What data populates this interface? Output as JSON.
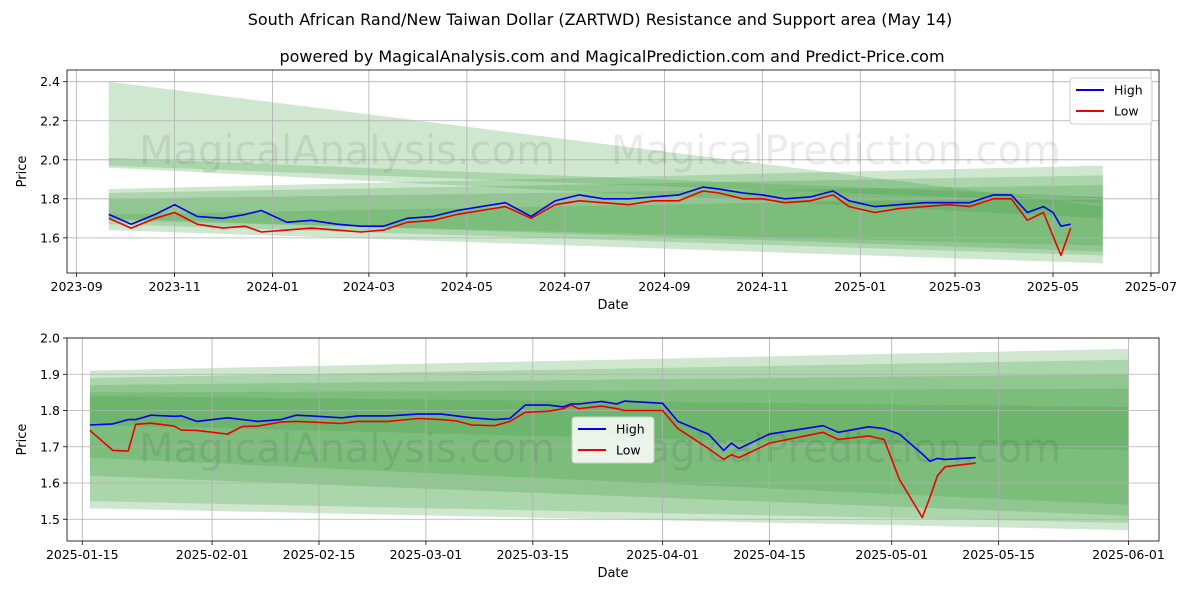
{
  "title": "South African Rand/New Taiwan Dollar (ZARTWD) Resistance and Support area (May 14)",
  "subtitle": "powered by MagicalAnalysis.com and MagicalPrediction.com and Predict-Price.com",
  "watermark": [
    "MagicalAnalysis.com",
    "MagicalPrediction.com"
  ],
  "colors": {
    "high": "#0000ee",
    "low": "#ee0000",
    "band": "#3f9f3f"
  },
  "chart_data": [
    {
      "type": "line",
      "xlabel": "Date",
      "ylabel": "Price",
      "xlim": [
        "2023-08-26",
        "2025-07-06"
      ],
      "ylim": [
        1.42,
        2.46
      ],
      "xticks": [
        "2023-09",
        "2023-11",
        "2024-01",
        "2024-03",
        "2024-05",
        "2024-07",
        "2024-09",
        "2024-11",
        "2025-01",
        "2025-03",
        "2025-05",
        "2025-07"
      ],
      "xtick_dates": [
        "2023-09-01",
        "2023-11-01",
        "2024-01-01",
        "2024-03-01",
        "2024-05-01",
        "2024-07-01",
        "2024-09-01",
        "2024-11-01",
        "2025-01-01",
        "2025-03-01",
        "2025-05-01",
        "2025-07-01"
      ],
      "yticks": [
        "1.6",
        "1.8",
        "2.0",
        "2.2",
        "2.4"
      ],
      "ytick_values": [
        1.6,
        1.8,
        2.0,
        2.2,
        2.4
      ],
      "grid": true,
      "legend": "top-right",
      "legend_entries": [
        "High",
        "Low"
      ],
      "bands": [
        {
          "start": "2023-09-21",
          "end": "2025-06-01",
          "upper": [
            2.4,
            1.76
          ],
          "lower": [
            1.96,
            1.7
          ]
        },
        {
          "start": "2023-09-21",
          "end": "2025-06-01",
          "upper": [
            2.01,
            1.81
          ],
          "lower": [
            1.97,
            1.78
          ]
        },
        {
          "start": "2023-09-21",
          "end": "2025-06-01",
          "upper": [
            1.85,
            1.97
          ],
          "lower": [
            1.64,
            1.47
          ]
        },
        {
          "start": "2023-09-21",
          "end": "2025-06-01",
          "upper": [
            1.83,
            1.92
          ],
          "lower": [
            1.67,
            1.51
          ]
        },
        {
          "start": "2023-09-21",
          "end": "2025-06-01",
          "upper": [
            1.8,
            1.87
          ],
          "lower": [
            1.7,
            1.53
          ]
        },
        {
          "start": "2023-09-21",
          "end": "2025-06-01",
          "upper": [
            1.72,
            1.81
          ],
          "lower": [
            1.69,
            1.56
          ]
        }
      ],
      "series": [
        {
          "name": "High",
          "x": [
            "2023-09-21",
            "2023-10-05",
            "2023-10-20",
            "2023-11-01",
            "2023-11-15",
            "2023-12-01",
            "2023-12-15",
            "2023-12-25",
            "2024-01-10",
            "2024-01-25",
            "2024-02-10",
            "2024-02-25",
            "2024-03-10",
            "2024-03-25",
            "2024-04-10",
            "2024-04-25",
            "2024-05-10",
            "2024-05-25",
            "2024-06-10",
            "2024-06-25",
            "2024-07-10",
            "2024-07-25",
            "2024-08-10",
            "2024-08-25",
            "2024-09-10",
            "2024-09-25",
            "2024-10-05",
            "2024-10-20",
            "2024-11-01",
            "2024-11-15",
            "2024-12-01",
            "2024-12-15",
            "2024-12-25",
            "2025-01-10",
            "2025-01-25",
            "2025-02-10",
            "2025-02-25",
            "2025-03-10",
            "2025-03-25",
            "2025-04-05",
            "2025-04-15",
            "2025-04-25",
            "2025-05-01",
            "2025-05-06",
            "2025-05-12"
          ],
          "y": [
            1.72,
            1.67,
            1.72,
            1.77,
            1.71,
            1.7,
            1.72,
            1.74,
            1.68,
            1.69,
            1.67,
            1.66,
            1.66,
            1.7,
            1.71,
            1.74,
            1.76,
            1.78,
            1.71,
            1.79,
            1.82,
            1.8,
            1.8,
            1.81,
            1.82,
            1.86,
            1.85,
            1.83,
            1.82,
            1.8,
            1.81,
            1.84,
            1.79,
            1.76,
            1.77,
            1.78,
            1.78,
            1.78,
            1.82,
            1.82,
            1.73,
            1.76,
            1.73,
            1.66,
            1.67
          ]
        },
        {
          "name": "Low",
          "x": [
            "2023-09-21",
            "2023-10-05",
            "2023-10-20",
            "2023-11-01",
            "2023-11-15",
            "2023-12-01",
            "2023-12-15",
            "2023-12-25",
            "2024-01-10",
            "2024-01-25",
            "2024-02-10",
            "2024-02-25",
            "2024-03-10",
            "2024-03-25",
            "2024-04-10",
            "2024-04-25",
            "2024-05-10",
            "2024-05-25",
            "2024-06-10",
            "2024-06-25",
            "2024-07-10",
            "2024-07-25",
            "2024-08-10",
            "2024-08-25",
            "2024-09-10",
            "2024-09-25",
            "2024-10-05",
            "2024-10-20",
            "2024-11-01",
            "2024-11-15",
            "2024-12-01",
            "2024-12-15",
            "2024-12-25",
            "2025-01-10",
            "2025-01-25",
            "2025-02-10",
            "2025-02-25",
            "2025-03-10",
            "2025-03-25",
            "2025-04-05",
            "2025-04-15",
            "2025-04-25",
            "2025-05-01",
            "2025-05-06",
            "2025-05-12"
          ],
          "y": [
            1.7,
            1.65,
            1.7,
            1.73,
            1.67,
            1.65,
            1.66,
            1.63,
            1.64,
            1.65,
            1.64,
            1.63,
            1.64,
            1.68,
            1.69,
            1.72,
            1.74,
            1.76,
            1.7,
            1.77,
            1.79,
            1.78,
            1.77,
            1.79,
            1.79,
            1.84,
            1.83,
            1.8,
            1.8,
            1.78,
            1.79,
            1.82,
            1.76,
            1.73,
            1.75,
            1.76,
            1.77,
            1.76,
            1.8,
            1.8,
            1.69,
            1.73,
            1.61,
            1.51,
            1.65
          ]
        }
      ]
    },
    {
      "type": "line",
      "xlabel": "Date",
      "ylabel": "Price",
      "xlim": [
        "2025-01-13",
        "2025-06-05"
      ],
      "ylim": [
        1.44,
        2.0
      ],
      "xticks": [
        "2025-01-15",
        "2025-02-01",
        "2025-02-15",
        "2025-03-01",
        "2025-03-15",
        "2025-04-01",
        "2025-04-15",
        "2025-05-01",
        "2025-05-15",
        "2025-06-01"
      ],
      "xtick_dates": [
        "2025-01-15",
        "2025-02-01",
        "2025-02-15",
        "2025-03-01",
        "2025-03-15",
        "2025-04-01",
        "2025-04-15",
        "2025-05-01",
        "2025-05-15",
        "2025-06-01"
      ],
      "yticks": [
        "1.5",
        "1.6",
        "1.7",
        "1.8",
        "1.9",
        "2.0"
      ],
      "ytick_values": [
        1.5,
        1.6,
        1.7,
        1.8,
        1.9,
        2.0
      ],
      "grid": true,
      "legend": "center",
      "legend_entries": [
        "High",
        "Low"
      ],
      "bands": [
        {
          "start": "2025-01-16",
          "end": "2025-06-01",
          "upper": [
            1.91,
            1.97
          ],
          "lower": [
            1.53,
            1.47
          ]
        },
        {
          "start": "2025-01-16",
          "end": "2025-06-01",
          "upper": [
            1.89,
            1.94
          ],
          "lower": [
            1.55,
            1.49
          ]
        },
        {
          "start": "2025-01-16",
          "end": "2025-06-01",
          "upper": [
            1.87,
            1.9
          ],
          "lower": [
            1.62,
            1.51
          ]
        },
        {
          "start": "2025-01-16",
          "end": "2025-06-01",
          "upper": [
            1.85,
            1.86
          ],
          "lower": [
            1.67,
            1.54
          ]
        },
        {
          "start": "2025-01-16",
          "end": "2025-06-01",
          "upper": [
            1.84,
            1.81
          ],
          "lower": [
            1.76,
            1.69
          ]
        }
      ],
      "series": [
        {
          "name": "High",
          "x": [
            "2025-01-16",
            "2025-01-19",
            "2025-01-21",
            "2025-01-22",
            "2025-01-24",
            "2025-01-27",
            "2025-01-28",
            "2025-01-30",
            "2025-02-03",
            "2025-02-05",
            "2025-02-07",
            "2025-02-10",
            "2025-02-12",
            "2025-02-14",
            "2025-02-18",
            "2025-02-20",
            "2025-02-24",
            "2025-02-28",
            "2025-03-03",
            "2025-03-05",
            "2025-03-07",
            "2025-03-10",
            "2025-03-12",
            "2025-03-14",
            "2025-03-17",
            "2025-03-19",
            "2025-03-20",
            "2025-03-21",
            "2025-03-24",
            "2025-03-26",
            "2025-03-27",
            "2025-04-01",
            "2025-04-03",
            "2025-04-07",
            "2025-04-09",
            "2025-04-10",
            "2025-04-11",
            "2025-04-14",
            "2025-04-15",
            "2025-04-22",
            "2025-04-24",
            "2025-04-28",
            "2025-04-30",
            "2025-05-02",
            "2025-05-05",
            "2025-05-06",
            "2025-05-07",
            "2025-05-08",
            "2025-05-12"
          ],
          "y": [
            1.76,
            1.763,
            1.775,
            1.775,
            1.787,
            1.784,
            1.785,
            1.77,
            1.78,
            1.775,
            1.77,
            1.775,
            1.787,
            1.785,
            1.78,
            1.785,
            1.785,
            1.79,
            1.79,
            1.785,
            1.78,
            1.775,
            1.778,
            1.815,
            1.815,
            1.81,
            1.818,
            1.818,
            1.825,
            1.818,
            1.826,
            1.82,
            1.77,
            1.735,
            1.69,
            1.71,
            1.695,
            1.725,
            1.735,
            1.758,
            1.74,
            1.755,
            1.75,
            1.735,
            1.68,
            1.66,
            1.668,
            1.665,
            1.67
          ]
        },
        {
          "name": "Low",
          "x": [
            "2025-01-16",
            "2025-01-19",
            "2025-01-21",
            "2025-01-22",
            "2025-01-24",
            "2025-01-27",
            "2025-01-28",
            "2025-01-30",
            "2025-02-03",
            "2025-02-05",
            "2025-02-07",
            "2025-02-10",
            "2025-02-12",
            "2025-02-14",
            "2025-02-18",
            "2025-02-20",
            "2025-02-24",
            "2025-02-28",
            "2025-03-03",
            "2025-03-05",
            "2025-03-07",
            "2025-03-10",
            "2025-03-12",
            "2025-03-14",
            "2025-03-17",
            "2025-03-19",
            "2025-03-20",
            "2025-03-21",
            "2025-03-24",
            "2025-03-26",
            "2025-03-27",
            "2025-04-01",
            "2025-04-03",
            "2025-04-07",
            "2025-04-09",
            "2025-04-10",
            "2025-04-11",
            "2025-04-14",
            "2025-04-15",
            "2025-04-22",
            "2025-04-24",
            "2025-04-28",
            "2025-04-30",
            "2025-05-02",
            "2025-05-05",
            "2025-05-06",
            "2025-05-07",
            "2025-05-08",
            "2025-05-12"
          ],
          "y": [
            1.745,
            1.69,
            1.688,
            1.762,
            1.765,
            1.757,
            1.746,
            1.745,
            1.735,
            1.756,
            1.757,
            1.768,
            1.77,
            1.768,
            1.764,
            1.77,
            1.77,
            1.778,
            1.775,
            1.771,
            1.76,
            1.758,
            1.77,
            1.795,
            1.798,
            1.805,
            1.815,
            1.805,
            1.812,
            1.805,
            1.8,
            1.8,
            1.75,
            1.695,
            1.665,
            1.678,
            1.67,
            1.7,
            1.71,
            1.74,
            1.72,
            1.73,
            1.72,
            1.61,
            1.505,
            1.56,
            1.62,
            1.645,
            1.655
          ]
        }
      ]
    }
  ]
}
